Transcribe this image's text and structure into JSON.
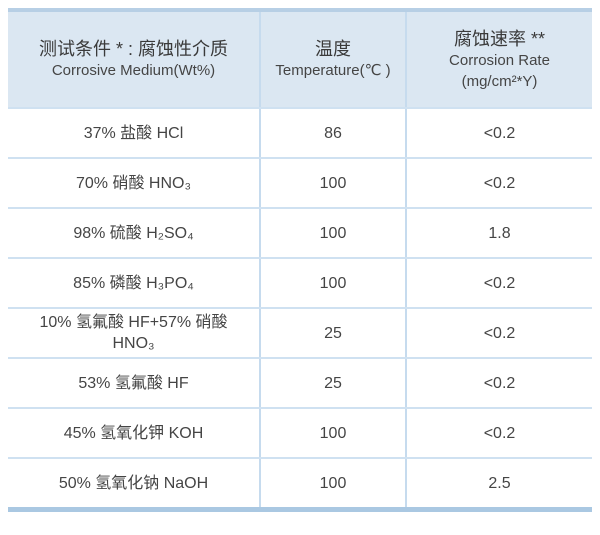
{
  "colors": {
    "header_bg": "#dbe7f2",
    "top_border": "#b7cfe5",
    "bottom_border": "#aac8e2",
    "row_divider": "#cfe1f1",
    "col_divider": "#c6dbee",
    "text": "#3e3e3e"
  },
  "table": {
    "columns": [
      {
        "zh": "测试条件 * : 腐蚀性介质",
        "en": "Corrosive Medium(Wt%)"
      },
      {
        "zh": "温度",
        "en": "Temperature(℃ )"
      },
      {
        "zh": "腐蚀速率 **",
        "en": "Corrosion Rate",
        "en2": "(mg/cm²*Y)"
      }
    ],
    "rows": [
      {
        "medium": "37% 盐酸 HCl",
        "temperature": "86",
        "rate": "<0.2"
      },
      {
        "medium": "70% 硝酸 HNO₃",
        "temperature": "100",
        "rate": "<0.2"
      },
      {
        "medium": "98% 硫酸 H₂SO₄",
        "temperature": "100",
        "rate": "1.8"
      },
      {
        "medium": "85% 磷酸 H₃PO₄",
        "temperature": "100",
        "rate": "<0.2"
      },
      {
        "medium": "10% 氢氟酸 HF+57% 硝酸\nHNO₃",
        "temperature": "25",
        "rate": "<0.2"
      },
      {
        "medium": "53% 氢氟酸 HF",
        "temperature": "25",
        "rate": "<0.2"
      },
      {
        "medium": "45% 氢氧化钾 KOH",
        "temperature": "100",
        "rate": "<0.2"
      },
      {
        "medium": "50% 氢氧化钠 NaOH",
        "temperature": "100",
        "rate": "2.5"
      }
    ]
  },
  "chart_data": {
    "type": "table",
    "title": "",
    "columns": [
      "测试条件 * : 腐蚀性介质 Corrosive Medium(Wt%)",
      "温度 Temperature(℃)",
      "腐蚀速率 ** Corrosion Rate (mg/cm²*Y)"
    ],
    "rows": [
      [
        "37% 盐酸 HCl",
        "86",
        "<0.2"
      ],
      [
        "70% 硝酸 HNO₃",
        "100",
        "<0.2"
      ],
      [
        "98% 硫酸 H₂SO₄",
        "100",
        "1.8"
      ],
      [
        "85% 磷酸 H₃PO₄",
        "100",
        "<0.2"
      ],
      [
        "10% 氢氟酸 HF+57% 硝酸 HNO₃",
        "25",
        "<0.2"
      ],
      [
        "53% 氢氟酸 HF",
        "25",
        "<0.2"
      ],
      [
        "45% 氢氧化钾 KOH",
        "100",
        "<0.2"
      ],
      [
        "50% 氢氧化钠 NaOH",
        "100",
        "2.5"
      ]
    ]
  }
}
